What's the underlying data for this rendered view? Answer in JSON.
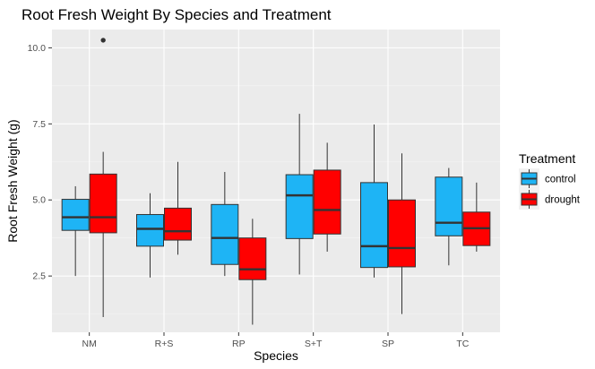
{
  "chart_data": {
    "type": "boxplot",
    "title": "Root Fresh Weight By Species and Treatment",
    "xlabel": "Species",
    "ylabel": "Root Fresh Weight (g)",
    "ylim": [
      0.65,
      10.6
    ],
    "yticks": [
      2.5,
      5.0,
      7.5,
      10.0
    ],
    "ytick_labels": [
      "2.5",
      "5.0",
      "7.5",
      "10.0"
    ],
    "grid": true,
    "categories": [
      "NM",
      "R+S",
      "RP",
      "S+T",
      "SP",
      "TC"
    ],
    "legend": {
      "title": "Treatment",
      "position": "right",
      "entries": [
        {
          "label": "control",
          "color": "#1EB4F5"
        },
        {
          "label": "drought",
          "color": "#FF0000"
        }
      ]
    },
    "series": [
      {
        "name": "control",
        "color": "#1EB4F5",
        "boxes": [
          {
            "whisker_low": 2.5,
            "q1": 4.0,
            "median": 4.43,
            "q3": 5.02,
            "whisker_high": 5.45,
            "outliers": []
          },
          {
            "whisker_low": 2.45,
            "q1": 3.48,
            "median": 4.05,
            "q3": 4.52,
            "whisker_high": 5.22,
            "outliers": []
          },
          {
            "whisker_low": 2.5,
            "q1": 2.88,
            "median": 3.75,
            "q3": 4.85,
            "whisker_high": 5.92,
            "outliers": []
          },
          {
            "whisker_low": 2.55,
            "q1": 3.73,
            "median": 5.15,
            "q3": 5.83,
            "whisker_high": 7.83,
            "outliers": []
          },
          {
            "whisker_low": 2.45,
            "q1": 2.78,
            "median": 3.48,
            "q3": 5.57,
            "whisker_high": 7.48,
            "outliers": []
          },
          {
            "whisker_low": 2.85,
            "q1": 3.82,
            "median": 4.25,
            "q3": 5.75,
            "whisker_high": 6.05,
            "outliers": []
          }
        ]
      },
      {
        "name": "drought",
        "color": "#FF0000",
        "boxes": [
          {
            "whisker_low": 1.15,
            "q1": 3.92,
            "median": 4.43,
            "q3": 5.85,
            "whisker_high": 6.58,
            "outliers": [
              10.25
            ]
          },
          {
            "whisker_low": 3.2,
            "q1": 3.68,
            "median": 3.97,
            "q3": 4.73,
            "whisker_high": 6.25,
            "outliers": []
          },
          {
            "whisker_low": 0.9,
            "q1": 2.38,
            "median": 2.72,
            "q3": 3.75,
            "whisker_high": 4.38,
            "outliers": []
          },
          {
            "whisker_low": 3.3,
            "q1": 3.88,
            "median": 4.67,
            "q3": 5.98,
            "whisker_high": 6.88,
            "outliers": []
          },
          {
            "whisker_low": 1.25,
            "q1": 2.8,
            "median": 3.42,
            "q3": 5.0,
            "whisker_high": 6.53,
            "outliers": []
          },
          {
            "whisker_low": 3.3,
            "q1": 3.5,
            "median": 4.07,
            "q3": 4.6,
            "whisker_high": 5.57,
            "outliers": []
          }
        ]
      }
    ]
  }
}
